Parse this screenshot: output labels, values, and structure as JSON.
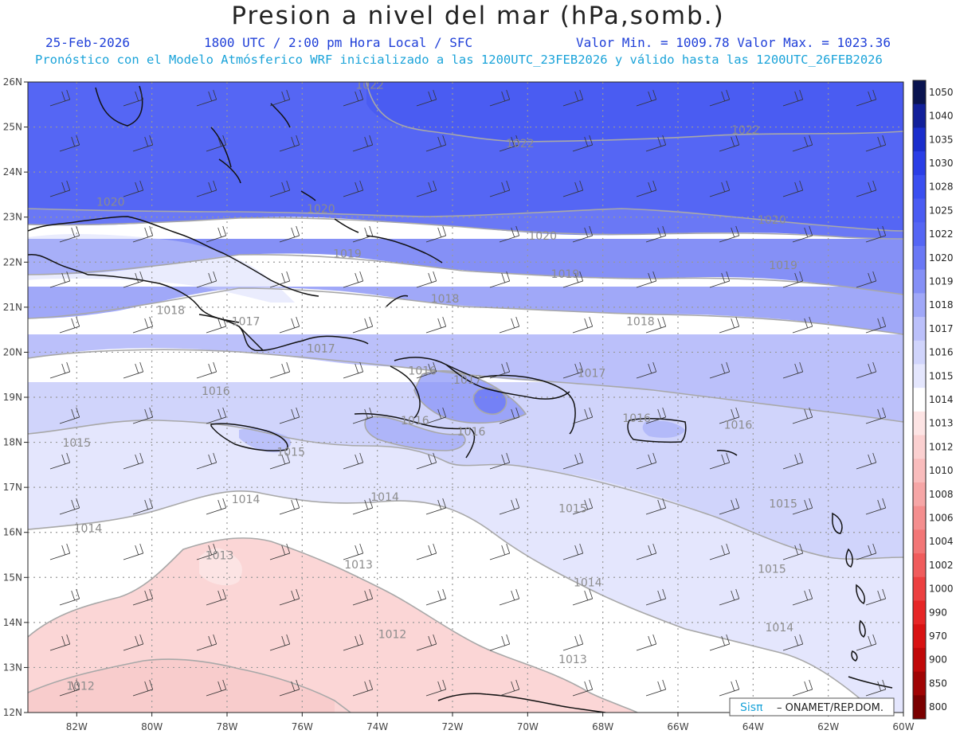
{
  "header": {
    "title": "Presion a nivel del mar (hPa,somb.)",
    "date": "25-Feb-2026",
    "time_info": "1800 UTC / 2:00 pm Hora Local / SFC",
    "min_max": "Valor Min. = 1009.78  Valor Max. = 1023.36",
    "model_info": "Pronóstico con el Modelo Atmósferico WRF inicializado a las 1200UTC_23FEB2026 y válido hasta las  1200UTC_26FEB2026"
  },
  "map": {
    "lat_labels": [
      "26N",
      "25N",
      "24N",
      "23N",
      "22N",
      "21N",
      "20N",
      "19N",
      "18N",
      "17N",
      "16N",
      "15N",
      "14N",
      "13N",
      "12N"
    ],
    "lon_labels": [
      "82W",
      "80W",
      "78W",
      "76W",
      "74W",
      "72W",
      "70W",
      "68W",
      "66W",
      "64W",
      "62W",
      "60W"
    ],
    "contour_labels": [
      "1022",
      "1022",
      "1022",
      "1020",
      "1020",
      "1020",
      "1020",
      "1019",
      "1019",
      "1019",
      "1018",
      "1018",
      "1018",
      "1017",
      "1017",
      "1017",
      "1017",
      "1016",
      "1016",
      "1016",
      "1016",
      "1016",
      "1016",
      "1015",
      "1015",
      "1015",
      "1015",
      "1015",
      "1014",
      "1014",
      "1014",
      "1014",
      "1014",
      "1013",
      "1013",
      "1013",
      "1012",
      "1012"
    ]
  },
  "colorbar": {
    "labels": [
      "1050",
      "1040",
      "1035",
      "1030",
      "1028",
      "1025",
      "1022",
      "1020",
      "1019",
      "1018",
      "1017",
      "1016",
      "1015",
      "1014",
      "1013",
      "1012",
      "1010",
      "1008",
      "1006",
      "1004",
      "1002",
      "1000",
      "990",
      "970",
      "900",
      "850",
      "800"
    ],
    "colors": [
      "#0a1450",
      "#12209a",
      "#1a2ecc",
      "#2a3ee6",
      "#3a4ff0",
      "#4a5cf2",
      "#5566f4",
      "#6a78f5",
      "#8590f6",
      "#a0a8f8",
      "#bbc0fa",
      "#d0d4fb",
      "#e4e6fd",
      "#ffffff",
      "#fde4e4",
      "#fbd0d0",
      "#f9bcbc",
      "#f6a6a6",
      "#f48e8e",
      "#f27676",
      "#f05c5c",
      "#ec4040",
      "#e62626",
      "#d81212",
      "#c00808",
      "#a00404",
      "#7a0000"
    ]
  },
  "credit": {
    "logo_text": "Sisπ",
    "text": "– ONAMET/REP.DOM."
  }
}
